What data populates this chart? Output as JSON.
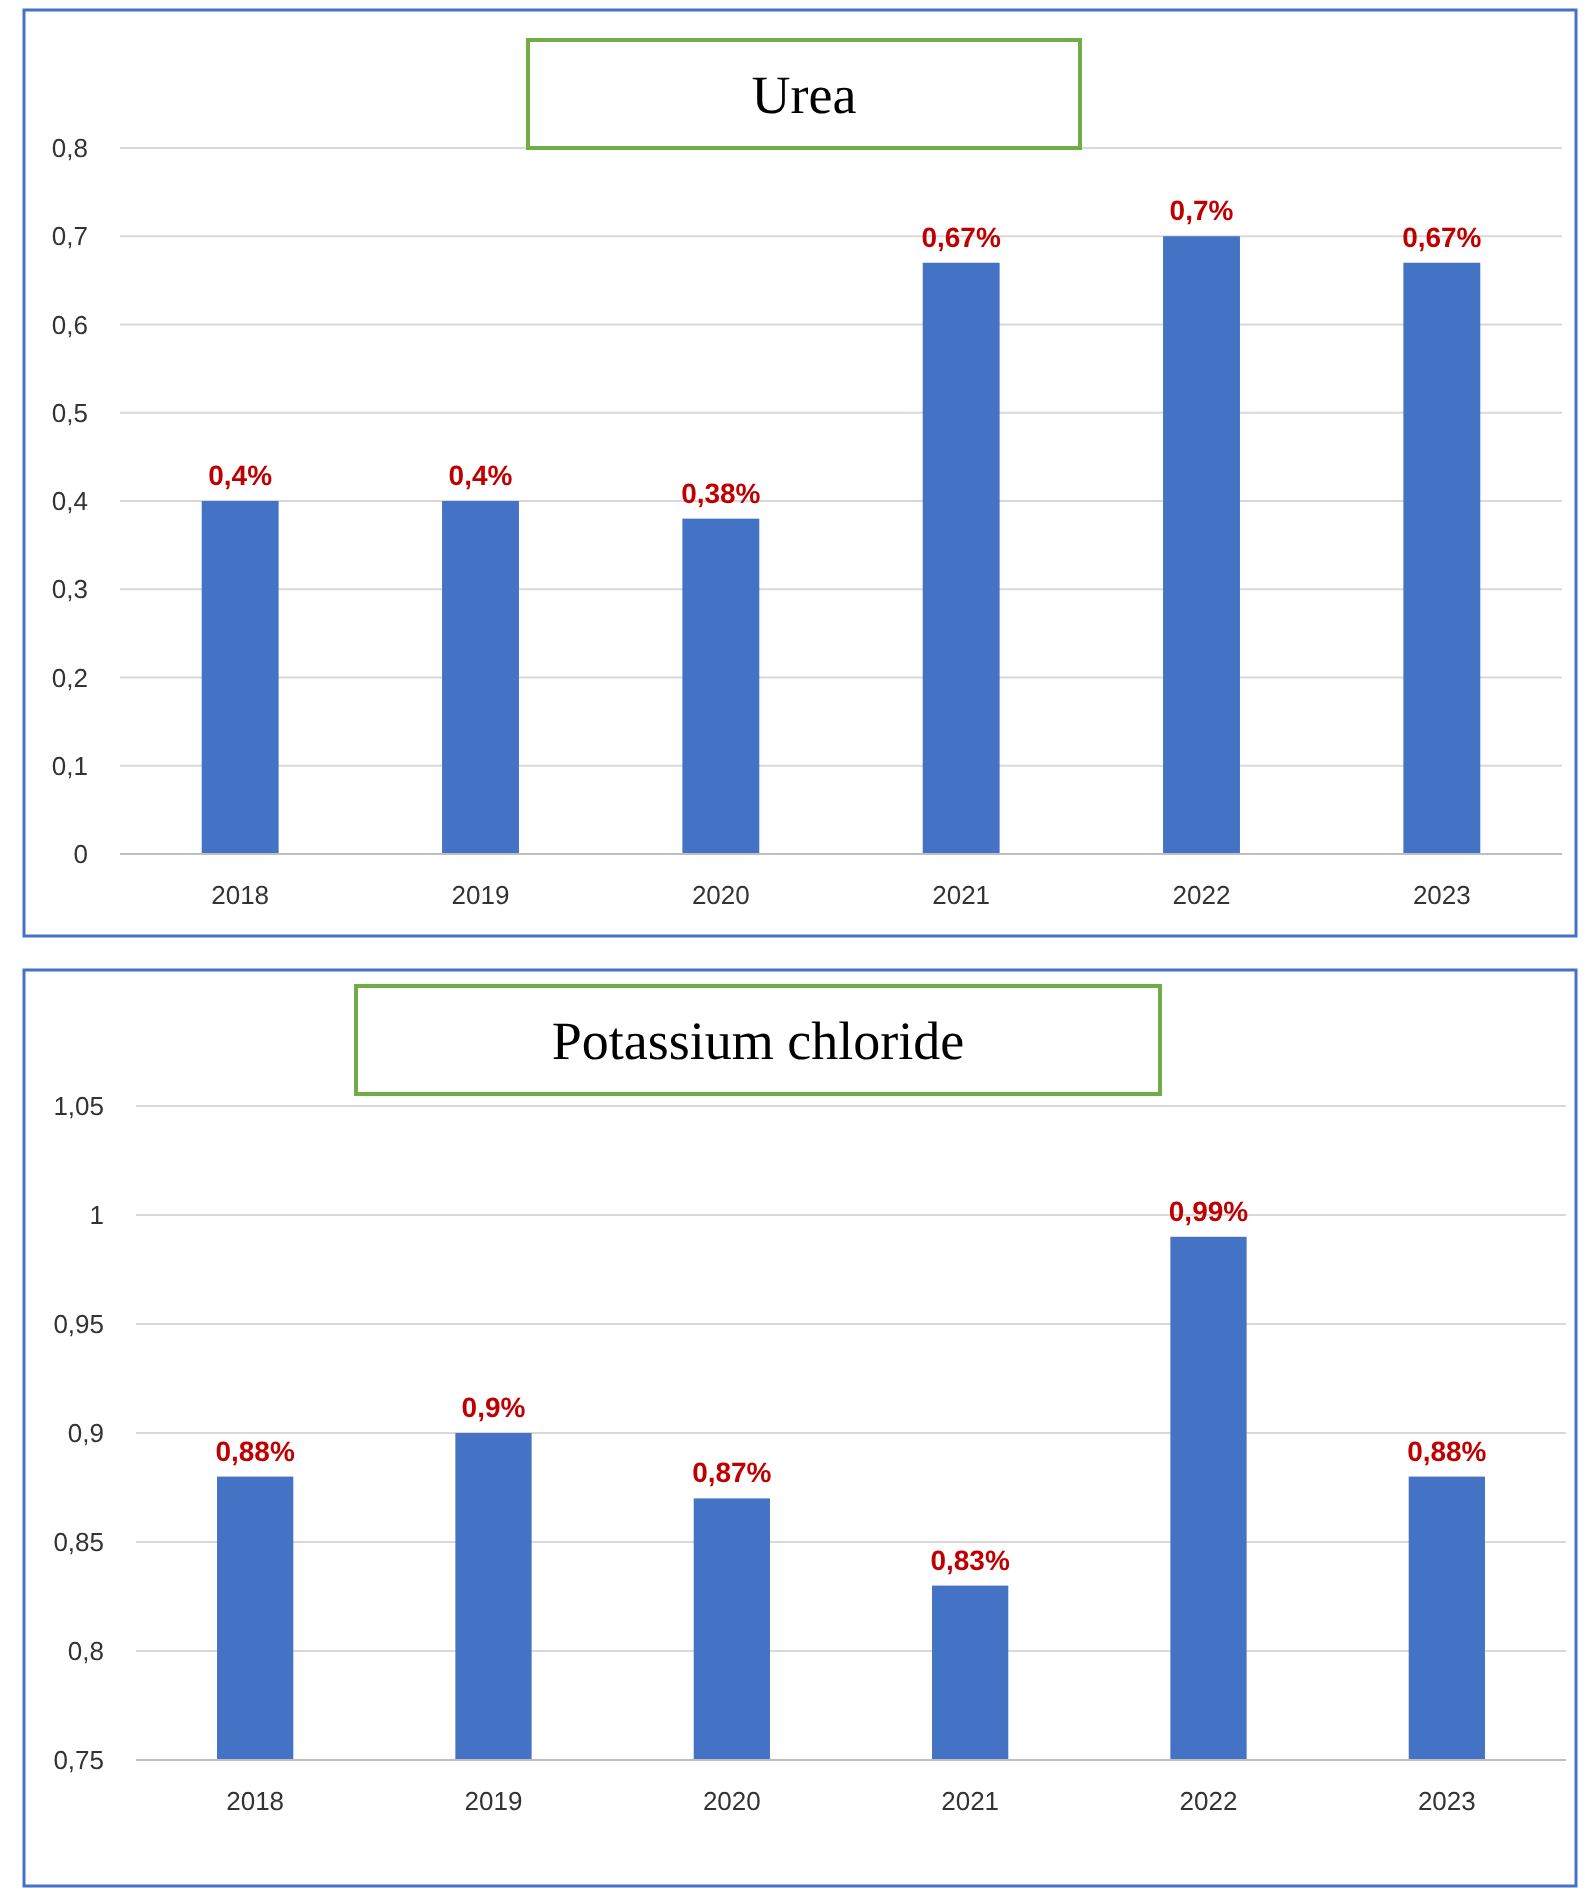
{
  "chart_data": [
    {
      "type": "bar",
      "title": "Urea",
      "categories": [
        "2018",
        "2019",
        "2020",
        "2021",
        "2022",
        "2023"
      ],
      "values": [
        0.4,
        0.4,
        0.38,
        0.67,
        0.7,
        0.67
      ],
      "color": "#4472c4",
      "value_labels": [
        "0,4%",
        "0,4%",
        "0,38%",
        "0,67%",
        "0,7%",
        "0,67%"
      ],
      "ylim": [
        0,
        0.8
      ],
      "yticks": [
        0,
        {
          "value": 0.1,
          "label": "0,1"
        },
        {
          "value": 0.2,
          "label": "0,2"
        },
        {
          "value": 0.3,
          "label": "0,3"
        },
        {
          "value": 0.4,
          "label": "0,4"
        },
        {
          "value": 0.5,
          "label": "0,5"
        },
        {
          "value": 0.6,
          "label": "0,6"
        },
        {
          "value": 0.7,
          "label": "0,7"
        },
        {
          "value": 0.8,
          "label": "0,8"
        }
      ],
      "grid": "y"
    },
    {
      "type": "bar",
      "title": "Potassium chloride",
      "categories": [
        "2018",
        "2019",
        "2020",
        "2021",
        "2022",
        "2023"
      ],
      "values": [
        0.88,
        0.9,
        0.87,
        0.83,
        0.99,
        0.88
      ],
      "color": "#4472c4",
      "value_labels": [
        "0,88%",
        "0,9%",
        "0,87%",
        "0,83%",
        "0,99%",
        "0,88%"
      ],
      "ylim": [
        0.75,
        1.05
      ],
      "yticks": [
        {
          "value": 0.75,
          "label": "0,75"
        },
        {
          "value": 0.8,
          "label": "0,8"
        },
        {
          "value": 0.85,
          "label": "0,85"
        },
        {
          "value": 0.9,
          "label": "0,9"
        },
        {
          "value": 0.95,
          "label": "0,95"
        },
        1,
        {
          "value": 1.05,
          "label": "1,05"
        }
      ],
      "grid": "y"
    }
  ]
}
